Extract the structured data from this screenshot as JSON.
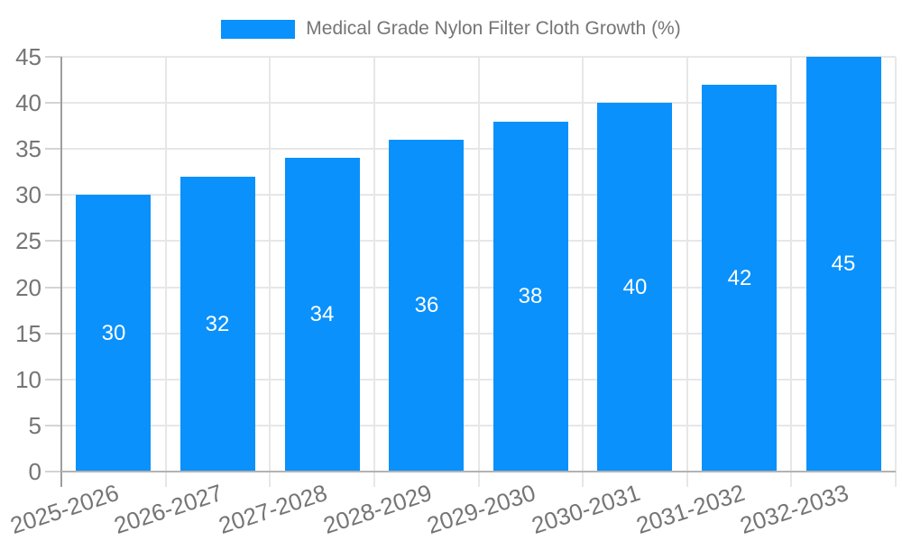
{
  "legend": {
    "label": "Medical Grade Nylon Filter Cloth Growth (%)"
  },
  "chart_data": {
    "type": "bar",
    "title": "Medical Grade Nylon Filter Cloth Growth (%)",
    "categories": [
      "2025-2026",
      "2026-2027",
      "2027-2028",
      "2028-2029",
      "2029-2030",
      "2030-2031",
      "2031-2032",
      "2032-2033"
    ],
    "values": [
      30,
      32,
      34,
      36,
      38,
      40,
      42,
      45
    ],
    "xlabel": "",
    "ylabel": "",
    "ylim": [
      0,
      45
    ],
    "ytick_step": 5,
    "ytick_labels": [
      "0",
      "5",
      "10",
      "15",
      "20",
      "25",
      "30",
      "35",
      "40",
      "45"
    ],
    "grid": true,
    "legend_position": "top",
    "value_labels_inside_bars": true,
    "bar_color": "#0a91fb",
    "value_label_color": "#ffffff",
    "axis_text_color": "#757575"
  }
}
